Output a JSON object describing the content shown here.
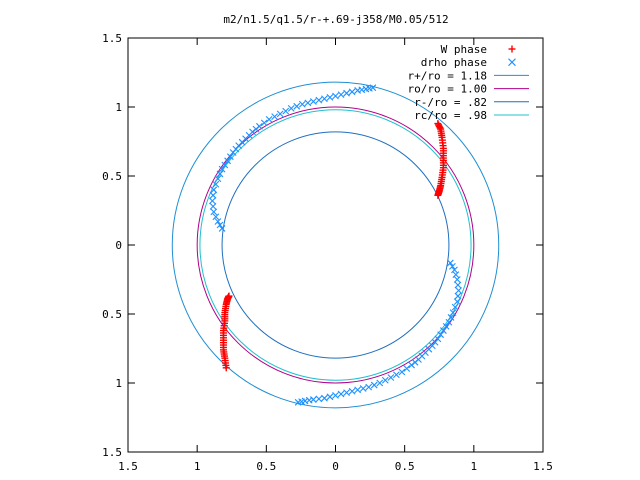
{
  "chart_data": {
    "type": "scatter",
    "title": "m2/n1.5/q1.5/r-+.69-j358/M0.05/512",
    "xlabel": "",
    "ylabel": "",
    "xlim": [
      -1.5,
      1.5
    ],
    "ylim": [
      -1.5,
      1.5
    ],
    "x_ticks": [
      -1.5,
      -1,
      -0.5,
      0,
      0.5,
      1,
      1.5
    ],
    "y_ticks": [
      -1.5,
      -1,
      -0.5,
      0,
      0.5,
      1,
      1.5
    ],
    "x_tick_labels": [
      "1.5",
      "1",
      "0.5",
      "0",
      "0.5",
      "1",
      "1.5"
    ],
    "y_tick_labels": [
      "1.5",
      "1",
      "0.5",
      "0",
      "0.5",
      "1",
      "1.5"
    ],
    "grid": false,
    "legend_position": "top-right",
    "series": [
      {
        "name": "W phase",
        "marker": "+",
        "color": "#ff0000",
        "clusters": [
          {
            "x": [
              0.74,
              0.76,
              0.77,
              0.78,
              0.78,
              0.78,
              0.77,
              0.76,
              0.75,
              0.74
            ],
            "y": [
              0.88,
              0.84,
              0.78,
              0.7,
              0.63,
              0.56,
              0.49,
              0.43,
              0.39,
              0.36
            ]
          },
          {
            "x": [
              -0.79,
              -0.8,
              -0.81,
              -0.81,
              -0.81,
              -0.8,
              -0.8,
              -0.79,
              -0.78,
              -0.77
            ],
            "y": [
              -0.89,
              -0.82,
              -0.76,
              -0.69,
              -0.62,
              -0.55,
              -0.49,
              -0.43,
              -0.39,
              -0.37
            ]
          }
        ]
      },
      {
        "name": "drho phase",
        "marker": "x",
        "color": "#1e90ff",
        "clusters": [
          {
            "x": [
              -0.82,
              -0.85,
              -0.88,
              -0.89,
              -0.88,
              -0.85,
              -0.82,
              -0.78,
              -0.74,
              -0.7,
              -0.65,
              -0.6,
              -0.55,
              -0.48,
              -0.4,
              -0.32,
              -0.24,
              -0.16,
              -0.08,
              0.0,
              0.08,
              0.16,
              0.22,
              0.27
            ],
            "y": [
              0.12,
              0.17,
              0.24,
              0.32,
              0.4,
              0.48,
              0.55,
              0.61,
              0.67,
              0.72,
              0.77,
              0.82,
              0.86,
              0.91,
              0.95,
              0.99,
              1.02,
              1.04,
              1.06,
              1.08,
              1.1,
              1.12,
              1.13,
              1.14
            ]
          },
          {
            "x": [
              0.83,
              0.86,
              0.88,
              0.89,
              0.88,
              0.85,
              0.82,
              0.78,
              0.74,
              0.7,
              0.65,
              0.6,
              0.55,
              0.48,
              0.4,
              0.32,
              0.24,
              0.16,
              0.08,
              0.0,
              -0.08,
              -0.16,
              -0.22,
              -0.27
            ],
            "y": [
              -0.13,
              -0.18,
              -0.25,
              -0.33,
              -0.41,
              -0.49,
              -0.56,
              -0.62,
              -0.68,
              -0.73,
              -0.78,
              -0.83,
              -0.87,
              -0.92,
              -0.96,
              -1.0,
              -1.03,
              -1.05,
              -1.07,
              -1.09,
              -1.11,
              -1.12,
              -1.13,
              -1.14
            ]
          }
        ]
      }
    ],
    "circles": [
      {
        "name": "r+/ro = 1.18",
        "radius": 1.18,
        "color": "#1f8fd3"
      },
      {
        "name": "ro/ro = 1.00",
        "radius": 1.0,
        "color": "#b0008c"
      },
      {
        "name": "r-/ro = .82",
        "radius": 0.82,
        "color": "#1f6fc0"
      },
      {
        "name": "rc/ro = .98",
        "radius": 0.98,
        "color": "#20c0d0"
      }
    ]
  }
}
